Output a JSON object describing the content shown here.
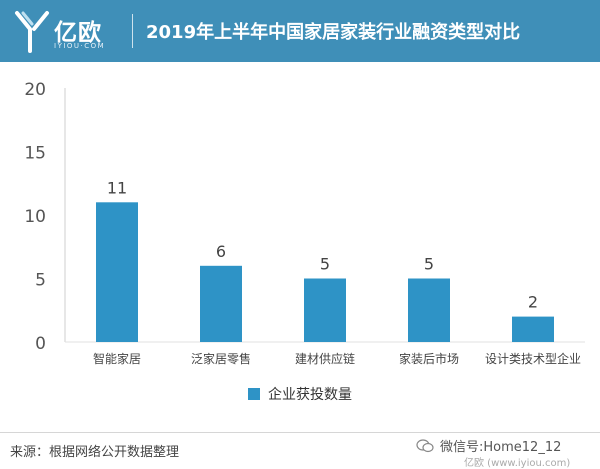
{
  "header": {
    "logo_cn": "亿欧",
    "logo_en": "IYIOU·COM",
    "title": "2019年上半年中国家居家装行业融资类型对比"
  },
  "chart_data": {
    "type": "bar",
    "categories": [
      "智能家居",
      "泛家居零售",
      "建材供应链",
      "家装后市场",
      "设计类技术型企业"
    ],
    "series": [
      {
        "name": "企业获投数量",
        "values": [
          11,
          6,
          5,
          5,
          2
        ]
      }
    ],
    "yticks": [
      "0",
      "5",
      "10",
      "15",
      "20"
    ],
    "ylim": [
      0,
      20
    ],
    "legend_position": "bottom",
    "bar_color": "#2e93c6"
  },
  "footer": {
    "source": "来源：根据网络公开数据整理",
    "watermark": "微信号:Home12_12",
    "watermark_sub": "亿欧 (www.iyiou.com)"
  },
  "colors": {
    "header_bg": "#3f8fb8",
    "bar": "#2e93c6"
  }
}
